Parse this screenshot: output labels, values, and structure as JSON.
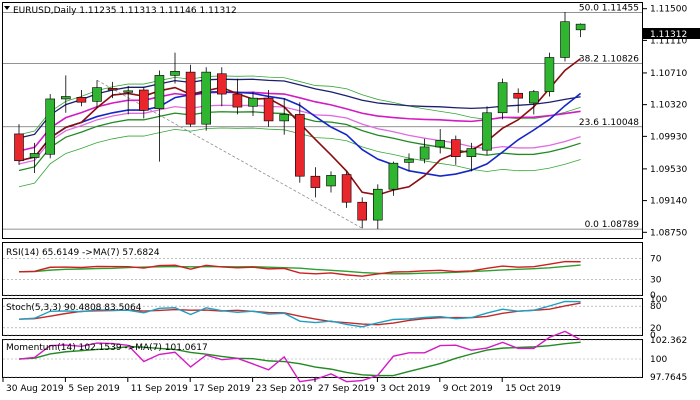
{
  "colors": {
    "background": "#ffffff",
    "bull_candle": "#2fb52f",
    "bear_candle": "#e8262b",
    "grid": "#8a8a8a",
    "frame": "#000000",
    "fib_line": "#6e6e6e",
    "trend_line": "#8f8f8f",
    "ma_blue": "#1527c8",
    "ma_magenta": "#d21bc3",
    "ma_pink": "#e06be0",
    "ma_green": "#228a22",
    "ma_darkred": "#8a0d10",
    "envelope": "#36a736",
    "top_line": "#1c1f6e",
    "rsi_line": "#cc1f1f",
    "rsi_ma": "#2e9e2e",
    "stoch_main": "#1c9fc2",
    "stoch_signal": "#c22a2a",
    "mom_line": "#d21bc3",
    "mom_ma": "#228a22",
    "price_box": "#000000",
    "price_box_text": "#ffffff"
  },
  "chart_data": [
    {
      "type": "candlestick",
      "title": "EURUSD,Daily  1.11235 1.11313 1.11146 1.11312",
      "yaxis_ticks": [
        "1.11500",
        "1.11110",
        "1.10710",
        "1.10320",
        "1.09930",
        "1.09530",
        "1.09140",
        "1.08750"
      ],
      "ylim": [
        1.0868,
        1.1157
      ],
      "x_labels": [
        "30 Aug 2019",
        "5 Sep 2019",
        "11 Sep 2019",
        "17 Sep 2019",
        "23 Sep 2019",
        "27 Sep 2019",
        "3 Oct 2019",
        "9 Oct 2019",
        "15 Oct 2019"
      ],
      "current_price_label": "1.11312",
      "fibonacci": [
        {
          "label": "50.0 1.11455",
          "value": 1.11455
        },
        {
          "label": "38.2 1.10826",
          "value": 1.10826
        },
        {
          "label": "23.6 1.10048",
          "value": 1.10048
        },
        {
          "label": "0.0 1.08789",
          "value": 1.08789
        }
      ],
      "candles": [
        {
          "o": 1.0996,
          "h": 1.1008,
          "l": 1.0958,
          "c": 1.0963
        },
        {
          "o": 1.0967,
          "h": 1.0985,
          "l": 1.0948,
          "c": 1.0972
        },
        {
          "o": 1.0971,
          "h": 1.1045,
          "l": 1.0966,
          "c": 1.1039
        },
        {
          "o": 1.1039,
          "h": 1.1068,
          "l": 1.1022,
          "c": 1.1042
        },
        {
          "o": 1.1041,
          "h": 1.105,
          "l": 1.103,
          "c": 1.1035
        },
        {
          "o": 1.1036,
          "h": 1.1062,
          "l": 1.1028,
          "c": 1.1053
        },
        {
          "o": 1.1052,
          "h": 1.106,
          "l": 1.104,
          "c": 1.105
        },
        {
          "o": 1.1049,
          "h": 1.1055,
          "l": 1.102,
          "c": 1.1049
        },
        {
          "o": 1.105,
          "h": 1.1054,
          "l": 1.1015,
          "c": 1.1025
        },
        {
          "o": 1.1027,
          "h": 1.1074,
          "l": 1.0962,
          "c": 1.1068
        },
        {
          "o": 1.1068,
          "h": 1.1096,
          "l": 1.1058,
          "c": 1.1073
        },
        {
          "o": 1.1072,
          "h": 1.1081,
          "l": 1.1005,
          "c": 1.1008
        },
        {
          "o": 1.1008,
          "h": 1.1078,
          "l": 1.1,
          "c": 1.1072
        },
        {
          "o": 1.107,
          "h": 1.1078,
          "l": 1.103,
          "c": 1.1045
        },
        {
          "o": 1.1045,
          "h": 1.1064,
          "l": 1.102,
          "c": 1.1029
        },
        {
          "o": 1.103,
          "h": 1.1048,
          "l": 1.1018,
          "c": 1.104
        },
        {
          "o": 1.104,
          "h": 1.105,
          "l": 1.1005,
          "c": 1.1012
        },
        {
          "o": 1.1012,
          "h": 1.104,
          "l": 1.0995,
          "c": 1.102
        },
        {
          "o": 1.102,
          "h": 1.1035,
          "l": 1.0936,
          "c": 1.0944
        },
        {
          "o": 1.0944,
          "h": 1.0955,
          "l": 1.0918,
          "c": 1.093
        },
        {
          "o": 1.0932,
          "h": 1.095,
          "l": 1.0924,
          "c": 1.0945
        },
        {
          "o": 1.0946,
          "h": 1.095,
          "l": 1.0905,
          "c": 1.0912
        },
        {
          "o": 1.0912,
          "h": 1.0918,
          "l": 1.088,
          "c": 1.089
        },
        {
          "o": 1.089,
          "h": 1.0934,
          "l": 1.0879,
          "c": 1.0928
        },
        {
          "o": 1.0928,
          "h": 1.0962,
          "l": 1.092,
          "c": 1.096
        },
        {
          "o": 1.0961,
          "h": 1.0972,
          "l": 1.095,
          "c": 1.0965
        },
        {
          "o": 1.0965,
          "h": 1.099,
          "l": 1.096,
          "c": 1.098
        },
        {
          "o": 1.098,
          "h": 1.1002,
          "l": 1.0972,
          "c": 1.0988
        },
        {
          "o": 1.0989,
          "h": 1.0994,
          "l": 1.0958,
          "c": 1.0968
        },
        {
          "o": 1.0968,
          "h": 1.0985,
          "l": 1.095,
          "c": 1.0978
        },
        {
          "o": 1.0976,
          "h": 1.103,
          "l": 1.097,
          "c": 1.1022
        },
        {
          "o": 1.1022,
          "h": 1.1064,
          "l": 1.1014,
          "c": 1.1059
        },
        {
          "o": 1.1046,
          "h": 1.1052,
          "l": 1.1022,
          "c": 1.104
        },
        {
          "o": 1.1034,
          "h": 1.105,
          "l": 1.102,
          "c": 1.1048
        },
        {
          "o": 1.1048,
          "h": 1.1096,
          "l": 1.1042,
          "c": 1.109
        },
        {
          "o": 1.109,
          "h": 1.1146,
          "l": 1.1085,
          "c": 1.1134
        },
        {
          "o": 1.1124,
          "h": 1.1132,
          "l": 1.1115,
          "c": 1.1131
        }
      ]
    },
    {
      "type": "line",
      "title": "RSI(14) 65.6149  ->MA(7) 57.6824",
      "yaxis_ticks": [
        "70",
        "30",
        "0"
      ],
      "ylim": [
        0,
        100
      ]
    },
    {
      "type": "line",
      "title": "Stoch(5,3,3) 90.4808 83.5064",
      "yaxis_ticks": [
        "100",
        "80",
        "20",
        "0"
      ],
      "ylim": [
        0,
        100
      ]
    },
    {
      "type": "line",
      "title": "Momentum(14) 102.1539  ->MA(7) 101.0617",
      "yaxis_ticks": [
        "102.362",
        "100",
        "97.7645"
      ],
      "ylim": [
        97.7645,
        102.362
      ]
    }
  ]
}
